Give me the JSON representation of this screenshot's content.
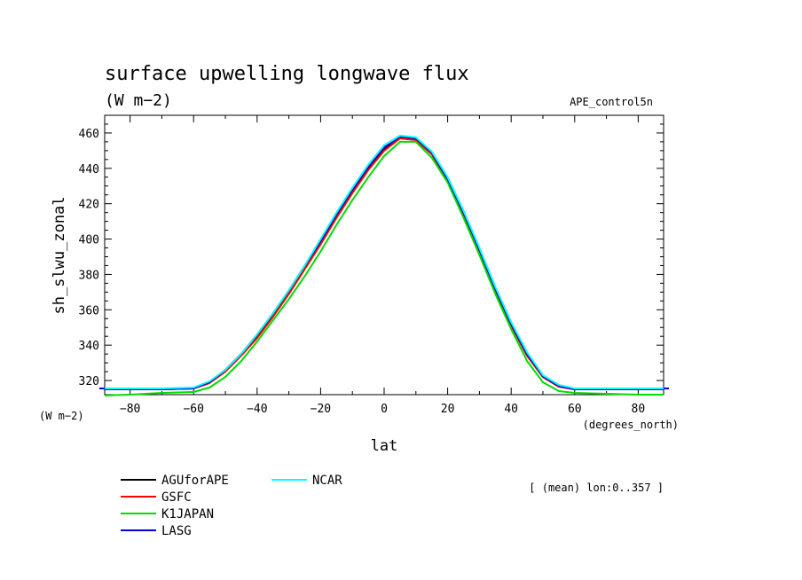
{
  "chart_data": {
    "type": "line",
    "title": "surface upwelling longwave flux",
    "subtitle": "(W m−2)",
    "run_label": "APE_control5n",
    "ylabel": "sh_slwu_zonal",
    "y_units": "(W m−2)",
    "xlabel": "lat",
    "x_units": "(degrees_north)",
    "annotation": "[ (mean) lon:0..357 ]",
    "xlim": [
      -88,
      88
    ],
    "ylim": [
      312,
      470
    ],
    "xticks": [
      -80,
      -60,
      -40,
      -20,
      0,
      20,
      40,
      60,
      80
    ],
    "yticks": [
      320,
      340,
      360,
      380,
      400,
      420,
      440,
      460
    ],
    "grid": false,
    "legend_position": "bottom-left",
    "x": [
      -88,
      -80,
      -70,
      -60,
      -55,
      -50,
      -45,
      -40,
      -35,
      -30,
      -25,
      -20,
      -15,
      -10,
      -5,
      0,
      5,
      10,
      15,
      20,
      25,
      30,
      35,
      40,
      45,
      50,
      55,
      60,
      70,
      80,
      88
    ],
    "series": [
      {
        "name": "AGUforAPE",
        "color": "#000000",
        "values": [
          315,
          315,
          315,
          315.5,
          319,
          326,
          335,
          345,
          357,
          370,
          384,
          398,
          413,
          427,
          440,
          451,
          457,
          456,
          448,
          433,
          414,
          393,
          371,
          351,
          334,
          322,
          316.5,
          315,
          315,
          315,
          315
        ]
      },
      {
        "name": "GSFC",
        "color": "#ff0000",
        "values": [
          315,
          315,
          315,
          315.5,
          318.5,
          325,
          334,
          344,
          356,
          369,
          383,
          397,
          412,
          426,
          439,
          450,
          457,
          456,
          448,
          433,
          414,
          393,
          371,
          351,
          334,
          322,
          316.5,
          315,
          315,
          315,
          315
        ]
      },
      {
        "name": "K1JAPAN",
        "color": "#00dd00",
        "values": [
          311.5,
          312,
          313,
          313.5,
          316,
          322,
          331,
          342,
          354,
          366,
          379,
          393,
          408,
          422,
          435,
          447,
          455,
          455,
          446,
          432,
          412,
          391,
          369,
          349,
          331,
          319,
          314,
          313,
          312.5,
          312,
          312
        ]
      },
      {
        "name": "LASG",
        "color": "#0000dd",
        "values": [
          315,
          315,
          315,
          315.5,
          319,
          326,
          335,
          346,
          358,
          371,
          385,
          399,
          414,
          428,
          441,
          452,
          458,
          457,
          449,
          434,
          415,
          394,
          372,
          352,
          335,
          322.5,
          317,
          315,
          315,
          315,
          315
        ]
      },
      {
        "name": "NCAR",
        "color": "#00ffff",
        "values": [
          315.5,
          315.5,
          315.5,
          316,
          319.5,
          326,
          335,
          346,
          358,
          371,
          385,
          400,
          415,
          429,
          442,
          453,
          458.5,
          457.5,
          449.5,
          435,
          416,
          395,
          373,
          353,
          336,
          323,
          317.5,
          315.5,
          315.5,
          315.5,
          315.5
        ]
      }
    ]
  }
}
